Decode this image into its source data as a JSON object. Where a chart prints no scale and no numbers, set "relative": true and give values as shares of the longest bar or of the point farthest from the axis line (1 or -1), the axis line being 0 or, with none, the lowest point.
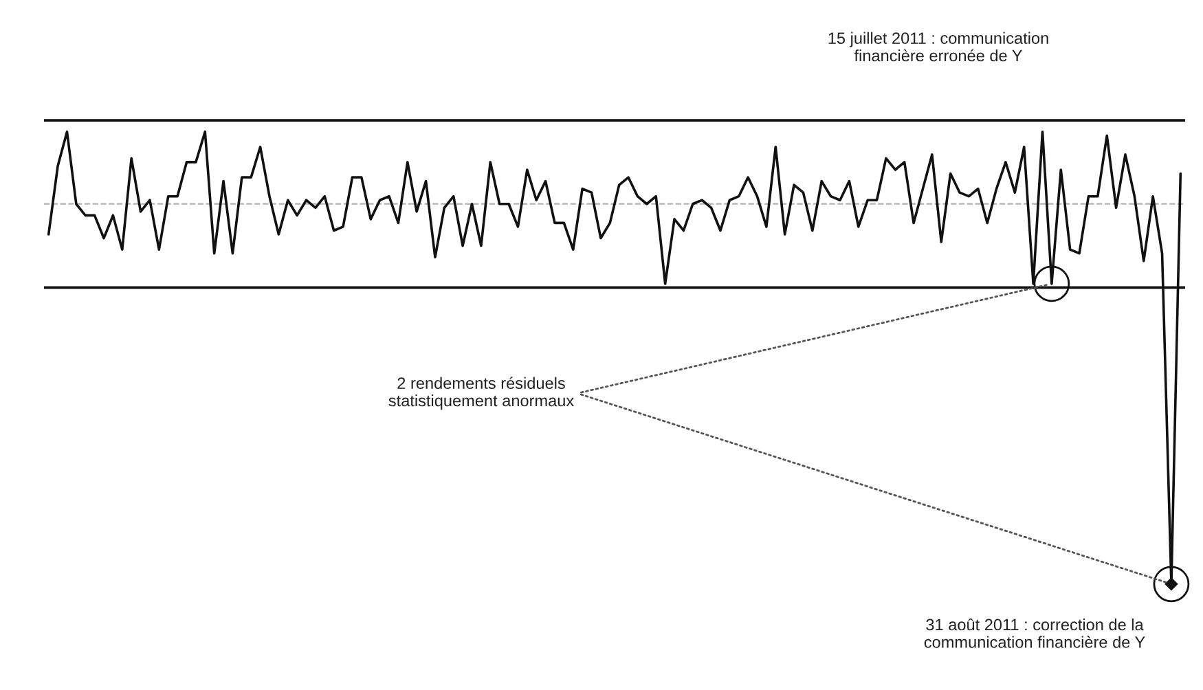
{
  "chart_data": {
    "type": "line",
    "relative": true,
    "grid": false,
    "legend": false,
    "marker": "none",
    "line_style": "solid",
    "categories": [
      null,
      null,
      null,
      null,
      null,
      null,
      null,
      null,
      null,
      null,
      null,
      null,
      null,
      null,
      null,
      null,
      null,
      null,
      null,
      null,
      null,
      null,
      null,
      null,
      null,
      null,
      null,
      null,
      null,
      null,
      null,
      null,
      null,
      null,
      null,
      null,
      null,
      null,
      null,
      null,
      null,
      null,
      null,
      null,
      null,
      null,
      null,
      null,
      null,
      null,
      null,
      null,
      null,
      null,
      null,
      null,
      null,
      null,
      null,
      null,
      null,
      null,
      null,
      null,
      null,
      null,
      null,
      null,
      null,
      null,
      null,
      null,
      null,
      null,
      null,
      null,
      null,
      null,
      null,
      null,
      null,
      null,
      null,
      null,
      null,
      null,
      null,
      null,
      null,
      null,
      null,
      null,
      null,
      null,
      null,
      null,
      null,
      null,
      null,
      null,
      null,
      null,
      null,
      null,
      null,
      null,
      null,
      null,
      null,
      null,
      null,
      null,
      null,
      null,
      null,
      null,
      null,
      null,
      null,
      null,
      null,
      null,
      null,
      null
    ],
    "series": [
      {
        "color": "#111111",
        "values": [
          -0.08,
          0.1,
          0.19,
          0.0,
          -0.03,
          -0.03,
          -0.09,
          -0.03,
          -0.12,
          0.12,
          -0.02,
          0.01,
          -0.12,
          0.02,
          0.02,
          0.11,
          0.11,
          0.19,
          -0.13,
          0.06,
          -0.13,
          0.07,
          0.07,
          0.15,
          0.02,
          -0.08,
          0.01,
          -0.03,
          0.01,
          -0.01,
          0.02,
          -0.07,
          -0.06,
          0.07,
          0.07,
          -0.04,
          0.01,
          0.02,
          -0.05,
          0.11,
          -0.02,
          0.06,
          -0.14,
          -0.01,
          0.02,
          -0.11,
          0.0,
          -0.11,
          0.11,
          0.0,
          0.0,
          -0.06,
          0.09,
          0.01,
          0.06,
          -0.05,
          -0.05,
          -0.12,
          0.04,
          0.03,
          -0.09,
          -0.05,
          0.05,
          0.07,
          0.02,
          0.0,
          0.02,
          -0.21,
          -0.04,
          -0.07,
          0.0,
          0.01,
          -0.01,
          -0.07,
          0.01,
          0.02,
          0.07,
          0.02,
          -0.06,
          0.15,
          -0.08,
          0.05,
          0.03,
          -0.07,
          0.06,
          0.02,
          0.01,
          0.06,
          -0.06,
          0.01,
          0.01,
          0.12,
          0.09,
          0.11,
          -0.05,
          0.04,
          0.13,
          -0.1,
          0.08,
          0.03,
          0.02,
          0.04,
          -0.05,
          0.04,
          0.11,
          0.03,
          0.15,
          -0.21,
          0.19,
          -0.21,
          0.09,
          -0.12,
          -0.13,
          0.02,
          0.02,
          0.18,
          -0.01,
          0.13,
          0.02,
          -0.15,
          0.02,
          -0.13,
          -1,
          0.08
        ]
      }
    ],
    "ref_lines": [
      {
        "axis": "y",
        "value": 0.22,
        "label": null,
        "color": "#111111",
        "line_style": "solid"
      },
      {
        "axis": "y",
        "value": 0,
        "label": null,
        "color": "#aaaaaa",
        "line_style": "dashed"
      },
      {
        "axis": "y",
        "value": -0.22,
        "label": null,
        "color": "#111111",
        "line_style": "solid"
      }
    ],
    "annotations": [
      "15 juillet 2011 : communication\nfinancière erronée de Y",
      "2 rendements résiduels\nstatistiquement anormaux",
      "31 août 2011 : correction de la\ncommunication financière de Y"
    ]
  }
}
